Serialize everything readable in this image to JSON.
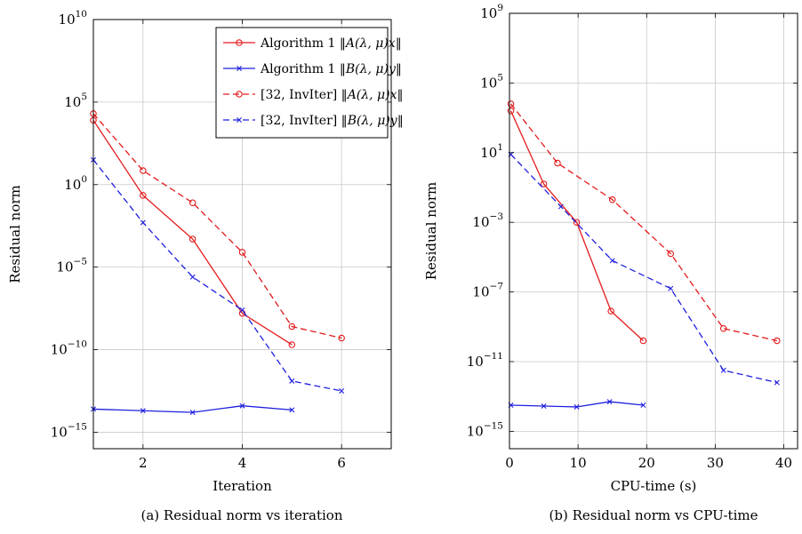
{
  "chart_data": [
    {
      "type": "line",
      "caption": "(a) Residual norm vs iteration",
      "xlabel": "Iteration",
      "ylabel": "Residual norm",
      "xlim": [
        1,
        7
      ],
      "ylim_log10": [
        -16,
        10
      ],
      "yscale": "log",
      "xticks": [
        2,
        4,
        6
      ],
      "xtick_labels": [
        "2",
        "4",
        "6"
      ],
      "yticks": [
        {
          "base": "10",
          "exp": "−15",
          "value": -15
        },
        {
          "base": "10",
          "exp": "−10",
          "value": -10
        },
        {
          "base": "10",
          "exp": "−5",
          "value": -5
        },
        {
          "base": "10",
          "exp": "0",
          "value": 0
        },
        {
          "base": "10",
          "exp": "5",
          "value": 5
        },
        {
          "base": "10",
          "exp": "10",
          "value": 10
        }
      ],
      "grid": true,
      "legend": {
        "position": "top-right",
        "entries": [
          {
            "prefix": "Algorithm 1 ",
            "norm": "A(λ, μ)x"
          },
          {
            "prefix": "Algorithm 1 ",
            "norm": "B(λ, μ)y"
          },
          {
            "prefix": "[32, InvIter] ",
            "norm": "A(λ, μ)x"
          },
          {
            "prefix": "[32, InvIter] ",
            "norm": "B(λ, μ)y"
          }
        ]
      },
      "series": [
        {
          "name": "Algorithm 1 ‖A(λ, μ)x‖",
          "color": "#e31a1c",
          "dash": "solid",
          "marker": "circle",
          "x": [
            1,
            2,
            3,
            4,
            5
          ],
          "y_log10": [
            3.9,
            -0.65,
            -3.3,
            -7.8,
            -9.7
          ]
        },
        {
          "name": "Algorithm 1 ‖B(λ, μ)y‖",
          "color": "#1f1fe0",
          "dash": "solid",
          "marker": "x",
          "x": [
            1,
            2,
            3,
            4,
            5
          ],
          "y_log10": [
            -13.6,
            -13.7,
            -13.8,
            -13.4,
            -13.65
          ]
        },
        {
          "name": "[32, InvIter] ‖A(λ, μ)x‖",
          "color": "#e31a1c",
          "dash": "dashed",
          "marker": "circle",
          "x": [
            1,
            2,
            3,
            4,
            5,
            6
          ],
          "y_log10": [
            4.3,
            0.85,
            -1.1,
            -4.1,
            -8.6,
            -9.3
          ]
        },
        {
          "name": "[32, InvIter] ‖B(λ, μ)y‖",
          "color": "#1f1fe0",
          "dash": "dashed",
          "marker": "x",
          "x": [
            1,
            2,
            3,
            4,
            5,
            6
          ],
          "y_log10": [
            1.5,
            -2.3,
            -5.6,
            -7.6,
            -11.9,
            -12.5
          ]
        }
      ]
    },
    {
      "type": "line",
      "caption": "(b) Residual norm vs CPU-time",
      "xlabel": "CPU-time (s)",
      "ylabel": "Residual norm",
      "xlim": [
        0,
        42
      ],
      "ylim_log10": [
        -16,
        9
      ],
      "yscale": "log",
      "xticks": [
        0,
        10,
        20,
        30,
        40
      ],
      "xtick_labels": [
        "0",
        "10",
        "20",
        "30",
        "40"
      ],
      "yticks": [
        {
          "base": "10",
          "exp": "−15",
          "value": -15
        },
        {
          "base": "10",
          "exp": "−11",
          "value": -11
        },
        {
          "base": "10",
          "exp": "−7",
          "value": -7
        },
        {
          "base": "10",
          "exp": "−3",
          "value": -3
        },
        {
          "base": "10",
          "exp": "1",
          "value": 1
        },
        {
          "base": "10",
          "exp": "5",
          "value": 5
        },
        {
          "base": "10",
          "exp": "9",
          "value": 9
        }
      ],
      "grid": true,
      "series": [
        {
          "name": "Algorithm 1 ‖A(λ, μ)x‖",
          "color": "#e31a1c",
          "dash": "solid",
          "marker": "circle",
          "x": [
            0.2,
            5,
            9.8,
            14.8,
            19.5
          ],
          "y_log10": [
            3.4,
            -0.8,
            -3.0,
            -8.1,
            -9.8
          ]
        },
        {
          "name": "Algorithm 1 ‖B(λ, μ)y‖",
          "color": "#1f1fe0",
          "dash": "solid",
          "marker": "x",
          "x": [
            0.2,
            5,
            9.8,
            14.6,
            19.5
          ],
          "y_log10": [
            -13.5,
            -13.55,
            -13.6,
            -13.3,
            -13.5
          ]
        },
        {
          "name": "[32, InvIter] ‖A(λ, μ)x‖",
          "color": "#e31a1c",
          "dash": "dashed",
          "marker": "circle",
          "x": [
            0.2,
            7,
            15,
            23.5,
            31.2,
            39
          ],
          "y_log10": [
            3.8,
            0.4,
            -1.7,
            -4.8,
            -9.1,
            -9.8
          ]
        },
        {
          "name": "[32, InvIter] ‖B(λ, μ)y‖",
          "color": "#1f1fe0",
          "dash": "dashed",
          "marker": "x",
          "x": [
            0.2,
            7.5,
            15,
            23.5,
            31.2,
            39
          ],
          "y_log10": [
            0.9,
            -2.1,
            -5.2,
            -6.8,
            -11.5,
            -12.2
          ]
        }
      ]
    }
  ]
}
